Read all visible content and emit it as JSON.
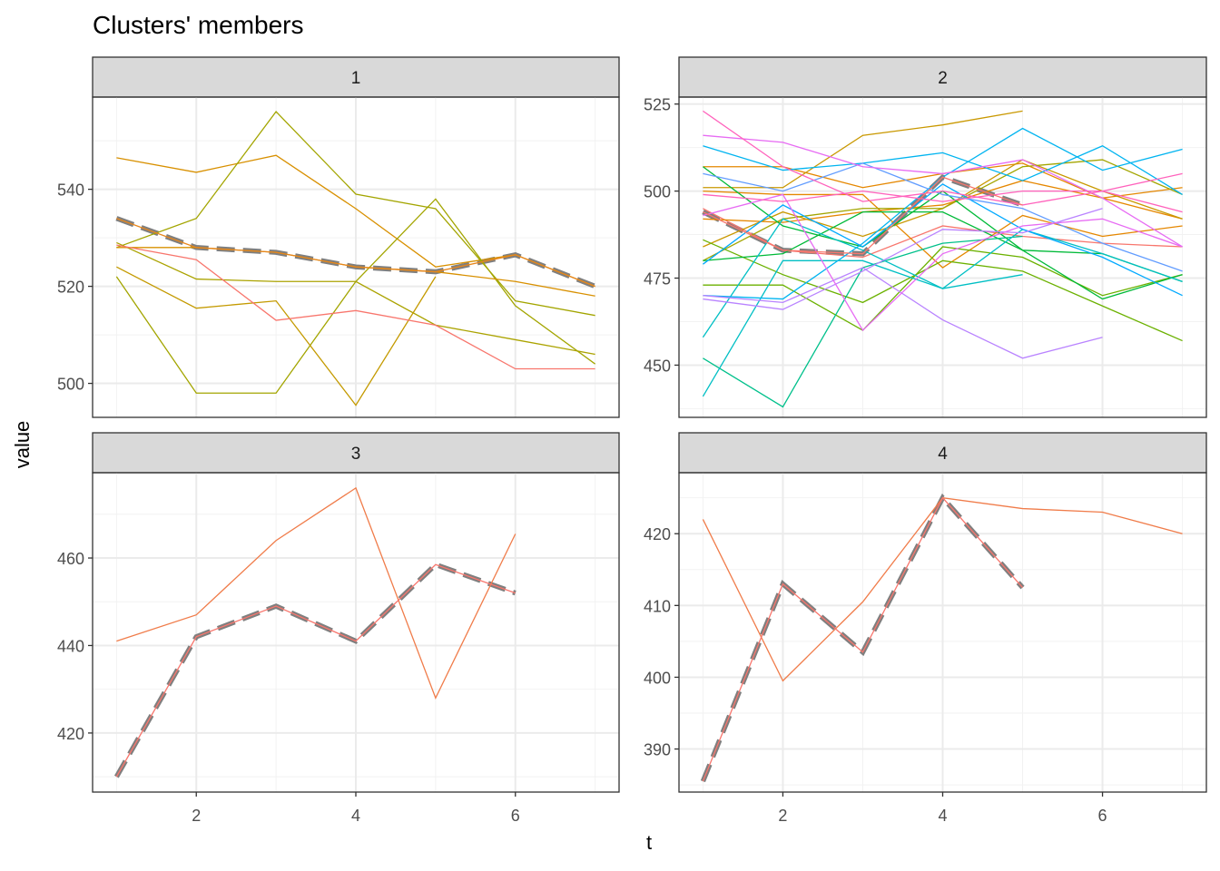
{
  "chart_data": {
    "type": "line",
    "title": "Clusters' members",
    "xlabel": "t",
    "ylabel": "value",
    "x_ticks": [
      2,
      4,
      6
    ],
    "xlim": [
      0.7,
      7.3
    ],
    "grid": true,
    "legend": "none",
    "centroid_style": "grey dashed",
    "panels": [
      {
        "strip": "1",
        "ylim": [
          493,
          559
        ],
        "y_ticks": [
          500,
          520,
          540
        ],
        "centroid": [
          534,
          528,
          527,
          524,
          523,
          526.5,
          520
        ],
        "series": [
          {
            "color": "#D89000",
            "x": [
              1,
              2,
              3,
              4,
              5,
              6,
              7
            ],
            "y": [
              546.5,
              543.5,
              547,
              536,
              524,
              526.5,
              520
            ]
          },
          {
            "color": "#A3A500",
            "x": [
              1,
              2,
              3,
              4,
              5,
              6,
              7
            ],
            "y": [
              528,
              534,
              556,
              539,
              536,
              517,
              514
            ]
          },
          {
            "color": "#A3A500",
            "x": [
              1,
              2,
              3,
              4,
              5,
              6,
              7
            ],
            "y": [
              522,
              498,
              498,
              521,
              538,
              516,
              504
            ]
          },
          {
            "color": "#ABA300",
            "x": [
              1,
              2,
              3,
              4,
              5,
              6,
              7
            ],
            "y": [
              529,
              521.5,
              521,
              521,
              512,
              509,
              506
            ]
          },
          {
            "color": "#C49A00",
            "x": [
              1,
              2,
              3,
              4,
              5
            ],
            "y": [
              524,
              515.5,
              517,
              495.5,
              522
            ]
          },
          {
            "color": "#D89000",
            "x": [
              1,
              2,
              3,
              4,
              5,
              6,
              7
            ],
            "y": [
              528,
              528,
              527,
              524,
              523,
              521,
              518
            ]
          },
          {
            "color": "#F8766D",
            "x": [
              1,
              2,
              3,
              4,
              5,
              6,
              7
            ],
            "y": [
              528.5,
              525.5,
              513,
              515,
              512,
              503,
              503
            ]
          },
          {
            "color": "#E7861B",
            "x": [
              1,
              2,
              3,
              4,
              5,
              6,
              7
            ],
            "y": [
              534,
              528,
              527,
              524,
              523,
              526.5,
              520
            ]
          }
        ]
      },
      {
        "strip": "2",
        "ylim": [
          435,
          527
        ],
        "y_ticks": [
          450,
          475,
          500,
          525
        ],
        "centroid": [
          494,
          483,
          482,
          504,
          496
        ],
        "series": [
          {
            "color": "#F8766D",
            "x": [
              1,
              2,
              3,
              4,
              5,
              6,
              7
            ],
            "y": [
              495,
              483,
              481,
              490,
              487,
              485,
              484
            ]
          },
          {
            "color": "#E58700",
            "x": [
              1,
              2,
              3,
              4,
              5,
              6,
              7
            ],
            "y": [
              507,
              507,
              501,
              505,
              508,
              498,
              492
            ]
          },
          {
            "color": "#E58700",
            "x": [
              1,
              2,
              3,
              4,
              5,
              6,
              7
            ],
            "y": [
              500,
              499,
              499,
              478,
              493,
              487,
              490
            ]
          },
          {
            "color": "#E58700",
            "x": [
              1,
              2,
              3,
              4,
              5,
              6,
              7
            ],
            "y": [
              492,
              491,
              494,
              496,
              503,
              498,
              501
            ]
          },
          {
            "color": "#C99800",
            "x": [
              1,
              2,
              3,
              4,
              5
            ],
            "y": [
              501,
              501,
              516,
              519,
              523
            ]
          },
          {
            "color": "#C99800",
            "x": [
              1,
              2,
              3,
              4,
              5,
              6,
              7
            ],
            "y": [
              484,
              494,
              487,
              495,
              509,
              500,
              492
            ]
          },
          {
            "color": "#A3A500",
            "x": [
              1,
              2,
              3,
              4,
              5,
              6,
              7
            ],
            "y": [
              480,
              492,
              495,
              495,
              507,
              509,
              499
            ]
          },
          {
            "color": "#6BB100",
            "x": [
              1,
              2,
              3,
              4,
              5,
              6,
              7
            ],
            "y": [
              486,
              476,
              468,
              480,
              477,
              467,
              457
            ]
          },
          {
            "color": "#6BB100",
            "x": [
              1,
              2,
              3,
              4,
              5,
              6,
              7
            ],
            "y": [
              473,
              473,
              460,
              484,
              481,
              470,
              476
            ]
          },
          {
            "color": "#00BA38",
            "x": [
              1,
              2,
              3,
              4,
              5,
              6,
              7
            ],
            "y": [
              507,
              490,
              484,
              500,
              483,
              482,
              474
            ]
          },
          {
            "color": "#00BA38",
            "x": [
              1,
              2,
              3,
              4,
              5,
              6,
              7
            ],
            "y": [
              480,
              482,
              494,
              494,
              483,
              469,
              476
            ]
          },
          {
            "color": "#00C08B",
            "x": [
              1,
              2,
              3,
              4,
              5
            ],
            "y": [
              452,
              438,
              478,
              485,
              487
            ]
          },
          {
            "color": "#00BFC4",
            "x": [
              1,
              2,
              3,
              4,
              5,
              6,
              7
            ],
            "y": [
              458,
              492,
              483,
              472,
              489,
              482,
              474
            ]
          },
          {
            "color": "#00BFC4",
            "x": [
              1,
              2,
              3,
              4,
              5
            ],
            "y": [
              441,
              480,
              480,
              472,
              476
            ]
          },
          {
            "color": "#00B4F0",
            "x": [
              1,
              2,
              3,
              4,
              5,
              6,
              7
            ],
            "y": [
              513,
              506,
              508,
              511,
              503,
              513,
              499
            ]
          },
          {
            "color": "#00B4F0",
            "x": [
              1,
              2,
              3,
              4,
              5,
              6,
              7
            ],
            "y": [
              470,
              469,
              485,
              504,
              518,
              506,
              512
            ]
          },
          {
            "color": "#00A9FF",
            "x": [
              1,
              2,
              3,
              4,
              5,
              6,
              7
            ],
            "y": [
              479,
              496,
              484,
              502,
              489,
              481,
              470
            ]
          },
          {
            "color": "#619CFF",
            "x": [
              1,
              2,
              3,
              4,
              5,
              6,
              7
            ],
            "y": [
              505,
              500,
              508,
              499,
              495,
              485,
              477
            ]
          },
          {
            "color": "#B983FF",
            "x": [
              1,
              2,
              3,
              4,
              5,
              6
            ],
            "y": [
              470,
              468,
              478,
              463,
              452,
              458
            ]
          },
          {
            "color": "#B983FF",
            "x": [
              1,
              2,
              3,
              4,
              5,
              6
            ],
            "y": [
              469,
              466,
              477,
              489,
              488,
              495
            ]
          },
          {
            "color": "#E76BF3",
            "x": [
              1,
              2,
              3,
              4,
              5,
              6,
              7
            ],
            "y": [
              516,
              514,
              507,
              505,
              509,
              498,
              484
            ]
          },
          {
            "color": "#E76BF3",
            "x": [
              1,
              2,
              3,
              4,
              5,
              6,
              7
            ],
            "y": [
              493,
              499,
              460,
              482,
              490,
              492,
              484
            ]
          },
          {
            "color": "#FF62BC",
            "x": [
              1,
              2,
              3,
              4,
              5,
              6,
              7
            ],
            "y": [
              523,
              507,
              497,
              500,
              496,
              500,
              505
            ]
          },
          {
            "color": "#FF62BC",
            "x": [
              1,
              2,
              3,
              4,
              5,
              6,
              7
            ],
            "y": [
              499,
              497,
              500,
              497,
              500,
              500,
              494
            ]
          },
          {
            "color": "#F8766D",
            "x": [
              1,
              2,
              3,
              4,
              5
            ],
            "y": [
              494,
              483,
              482,
              504,
              496
            ]
          }
        ]
      },
      {
        "strip": "3",
        "ylim": [
          406.5,
          479.5
        ],
        "y_ticks": [
          420,
          440,
          460
        ],
        "centroid": [
          410,
          442,
          449,
          441,
          458.5,
          452
        ],
        "series": [
          {
            "color": "#F07C4A",
            "x": [
              1,
              2,
              3,
              4,
              5,
              6
            ],
            "y": [
              441,
              447,
              464,
              476,
              428,
              465.5
            ]
          },
          {
            "color": "#F8766D",
            "x": [
              1,
              2,
              3,
              4,
              5,
              6
            ],
            "y": [
              410,
              442,
              449,
              441,
              458.5,
              452
            ]
          }
        ]
      },
      {
        "strip": "4",
        "ylim": [
          384,
          428.5
        ],
        "y_ticks": [
          390,
          400,
          410,
          420
        ],
        "centroid": [
          385.5,
          413,
          403.5,
          425,
          412.5
        ],
        "series": [
          {
            "color": "#F07C4A",
            "x": [
              1,
              2,
              3,
              4,
              5,
              6,
              7
            ],
            "y": [
              422,
              399.5,
              410.5,
              425,
              423.5,
              423,
              420
            ]
          },
          {
            "color": "#F8766D",
            "x": [
              1,
              2,
              3,
              4,
              5
            ],
            "y": [
              385.5,
              413,
              403.5,
              425,
              412.5
            ]
          }
        ]
      }
    ]
  }
}
